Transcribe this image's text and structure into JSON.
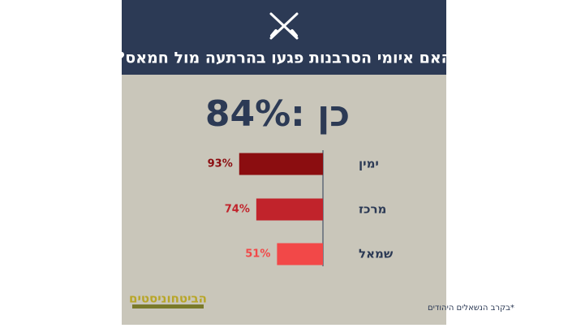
{
  "chart_data": {
    "type": "hbar",
    "title": "האם איומי הסרבנות פגעו בהרתעה מול חמאס?",
    "headline": "84%: כן",
    "categories": [
      "ימין",
      "מרכז",
      "שמאל"
    ],
    "values": [
      93,
      74,
      51
    ],
    "value_labels": [
      "93%",
      "74%",
      "51%"
    ],
    "colors": [
      "#8b0d10",
      "#c1232b",
      "#f24848"
    ],
    "xlim": [
      0,
      100
    ],
    "footnote": "*בקרב הנשאלים היהודים",
    "logo": "הביטחוניסטים"
  }
}
